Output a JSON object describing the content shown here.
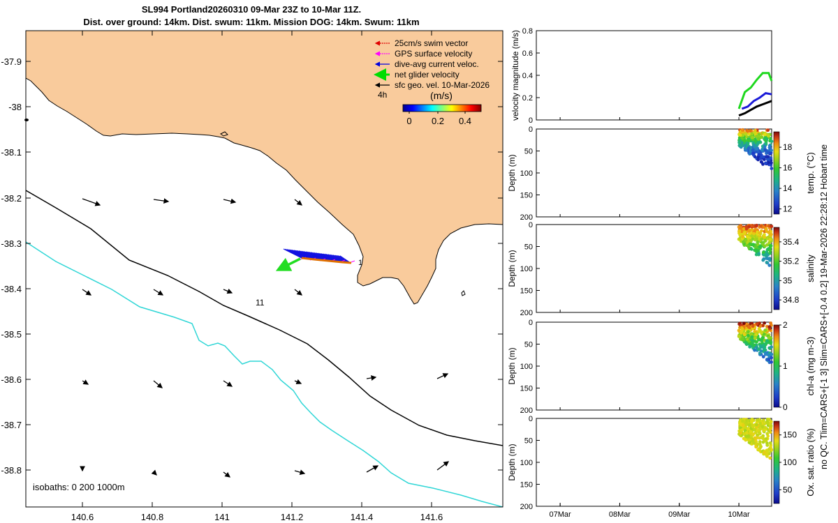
{
  "header": {
    "title_line1": "SL994 Portland20260310 09-Mar 23Z to 10-Mar 11Z.",
    "title_line2": "Dist. over ground: 14km. Dist. swum: 11km. Mission DOG: 14km. Swum: 11km"
  },
  "map": {
    "xticks": [
      "140.6",
      "140.8",
      "141",
      "141.2",
      "141.4",
      "141.6"
    ],
    "yticks": [
      "-37.9",
      "-38",
      "-38.1",
      "-38.2",
      "-38.3",
      "-38.4",
      "-38.5",
      "-38.6",
      "-38.7",
      "-38.8"
    ],
    "legend": [
      {
        "label": "25cm/s swim vector",
        "color": "#e00000"
      },
      {
        "label": "GPS surface velocity",
        "color": "#ff00ff"
      },
      {
        "label": "dive-avg current veloc.",
        "color": "#0000e0"
      },
      {
        "label": "net glider velocity",
        "color": "#00dd00"
      },
      {
        "label": "sfc geo. vel. 10-Mar-2026",
        "color": "#000000"
      }
    ],
    "scale_label": "4h",
    "colorbar": {
      "label": "(m/s)",
      "ticks": [
        "0",
        "0.2",
        "0.4"
      ]
    },
    "isobath_note": "isobaths: 0   200  1000m",
    "annotations": [
      "11",
      "1"
    ],
    "land_color": "#f9cb9c"
  },
  "chart_data": [
    {
      "type": "line",
      "ylabel": "velocity magnitude (m/s)",
      "ylim": [
        0,
        0.8
      ],
      "yticks": [
        "0",
        "0.2",
        "0.4",
        "0.6",
        "0.8"
      ],
      "xlim_days": [
        6.6,
        10.55
      ],
      "series": [
        {
          "name": "net glider velocity",
          "color": "#1ed81e",
          "x": [
            10.0,
            10.1,
            10.2,
            10.3,
            10.4,
            10.5,
            10.55
          ],
          "values": [
            0.1,
            0.25,
            0.29,
            0.36,
            0.42,
            0.42,
            0.35
          ]
        },
        {
          "name": "dive-avg current veloc.",
          "color": "#1a1ad8",
          "x": [
            10.05,
            10.15,
            10.25,
            10.35,
            10.45,
            10.55
          ],
          "values": [
            0.1,
            0.12,
            0.17,
            0.2,
            0.24,
            0.23
          ]
        },
        {
          "name": "sfc geo. vel.",
          "color": "#000000",
          "x": [
            10.0,
            10.1,
            10.2,
            10.3,
            10.4,
            10.55
          ],
          "values": [
            0.04,
            0.06,
            0.09,
            0.12,
            0.14,
            0.17
          ]
        }
      ]
    },
    {
      "type": "scatter",
      "ylabel": "Depth (m)",
      "ylim": [
        0,
        200
      ],
      "yticks": [
        "0",
        "50",
        "100",
        "150",
        "200"
      ],
      "cbar_label": "temp. (°C)",
      "cbar_ticks": [
        "12",
        "14",
        "16",
        "18"
      ],
      "cbar_range": [
        11.5,
        19.5
      ],
      "value_range": [
        12.0,
        19.0
      ]
    },
    {
      "type": "scatter",
      "ylabel": "Depth (m)",
      "ylim": [
        0,
        200
      ],
      "yticks": [
        "0",
        "50",
        "100",
        "150",
        "200"
      ],
      "cbar_label": "salinity",
      "cbar_ticks": [
        "34.8",
        "35",
        "35.2",
        "35.4"
      ],
      "cbar_range": [
        34.7,
        35.55
      ],
      "value_range": [
        34.9,
        35.5
      ]
    },
    {
      "type": "scatter",
      "ylabel": "Depth (m)",
      "ylim": [
        0,
        200
      ],
      "yticks": [
        "0",
        "50",
        "100",
        "150",
        "200"
      ],
      "cbar_label": "chl-a (mg m-3)",
      "cbar_ticks": [
        "0",
        "1",
        "2"
      ],
      "cbar_range": [
        0,
        2
      ],
      "value_range": [
        0.3,
        2.0
      ]
    },
    {
      "type": "scatter",
      "ylabel": "Depth (m)",
      "ylim": [
        0,
        200
      ],
      "yticks": [
        "0",
        "50",
        "100",
        "150",
        "200"
      ],
      "cbar_label": "Ox. sat. ratio (%)",
      "cbar_ticks": [
        "50",
        "100",
        "150"
      ],
      "cbar_range": [
        25,
        175
      ],
      "value_range": [
        115,
        150
      ],
      "xticks": [
        "07Mar",
        "08Mar",
        "09Mar",
        "10Mar"
      ]
    }
  ],
  "side_note": "no QC. Tlim=CARS+[-1 3] Slim=CARS+[-0.4 0.2] 19-Mar-2026 22:28:12 Hobart time"
}
